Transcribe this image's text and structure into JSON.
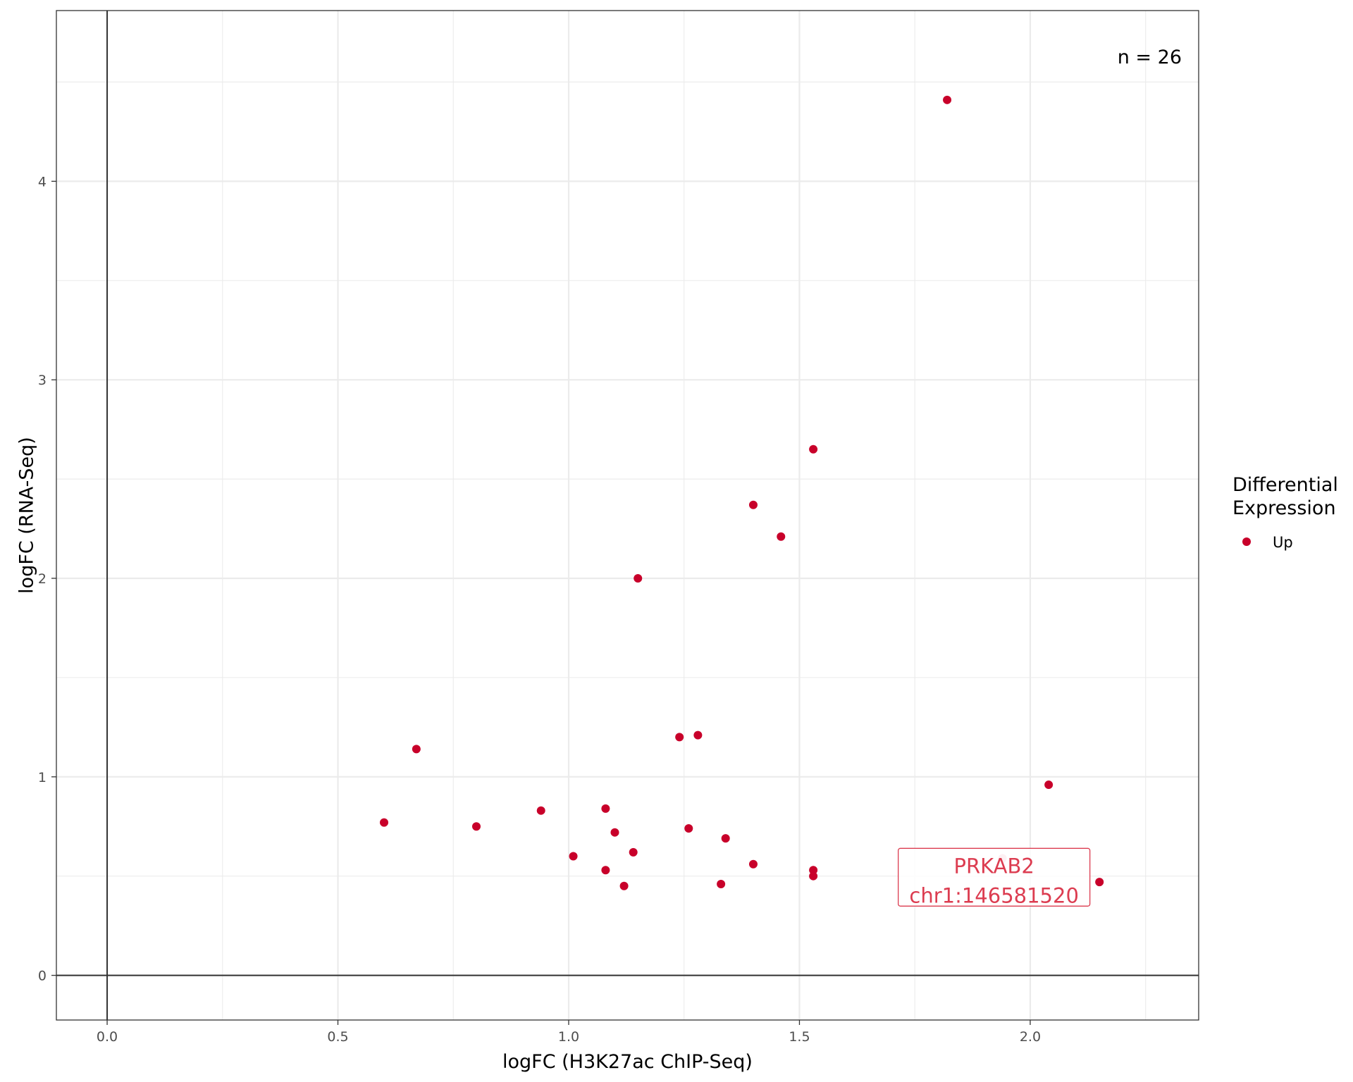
{
  "chart_data": {
    "type": "scatter",
    "xlabel": "logFC (H3K27ac ChIP-Seq)",
    "ylabel": "logFC (RNA-Seq)",
    "xlim": [
      -0.11,
      2.365
    ],
    "ylim": [
      -0.225,
      4.86
    ],
    "x_ticks": [
      0.0,
      0.5,
      1.0,
      1.5,
      2.0
    ],
    "x_tick_labels": [
      "0.0",
      "0.5",
      "1.0",
      "1.5",
      "2.0"
    ],
    "y_ticks": [
      0,
      1,
      2,
      3,
      4
    ],
    "y_tick_labels": [
      "0",
      "1",
      "2",
      "3",
      "4"
    ],
    "grid": true,
    "reference_lines": {
      "x": 0,
      "y": 0
    },
    "annotation": "n = 26",
    "legend": {
      "title_lines": [
        "Differential",
        "Expression"
      ],
      "entries": [
        {
          "label": "Up",
          "color": "#c8002a"
        }
      ],
      "placement": "right"
    },
    "series": [
      {
        "name": "Up",
        "color": "#c8002a",
        "points": [
          {
            "x": 1.82,
            "y": 4.41
          },
          {
            "x": 1.53,
            "y": 2.65
          },
          {
            "x": 1.4,
            "y": 2.37
          },
          {
            "x": 1.46,
            "y": 2.21
          },
          {
            "x": 1.15,
            "y": 2.0
          },
          {
            "x": 1.28,
            "y": 1.21
          },
          {
            "x": 1.24,
            "y": 1.2
          },
          {
            "x": 0.67,
            "y": 1.14
          },
          {
            "x": 2.04,
            "y": 0.96
          },
          {
            "x": 0.94,
            "y": 0.83
          },
          {
            "x": 1.08,
            "y": 0.84
          },
          {
            "x": 0.6,
            "y": 0.77
          },
          {
            "x": 0.8,
            "y": 0.75
          },
          {
            "x": 1.26,
            "y": 0.74
          },
          {
            "x": 1.1,
            "y": 0.72
          },
          {
            "x": 1.34,
            "y": 0.69
          },
          {
            "x": 1.14,
            "y": 0.62
          },
          {
            "x": 1.01,
            "y": 0.6
          },
          {
            "x": 1.4,
            "y": 0.56
          },
          {
            "x": 1.08,
            "y": 0.53
          },
          {
            "x": 1.53,
            "y": 0.53
          },
          {
            "x": 1.53,
            "y": 0.5
          },
          {
            "x": 1.33,
            "y": 0.46
          },
          {
            "x": 1.12,
            "y": 0.45
          },
          {
            "x": 2.15,
            "y": 0.47
          },
          {
            "x": 1.94,
            "y": 0.59,
            "highlighted": true
          }
        ]
      }
    ],
    "callout": {
      "lines": [
        "PRKAB2",
        "chr1:146581520"
      ],
      "color": "#dc3c50",
      "x": 1.94,
      "y": 0.59
    }
  }
}
